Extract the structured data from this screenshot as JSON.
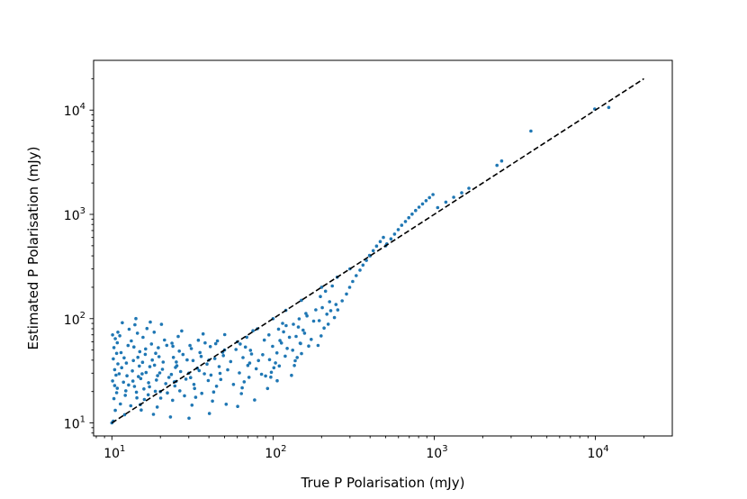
{
  "chart_data": {
    "type": "scatter",
    "title": "",
    "xlabel": "True P Polarisation (mJy)",
    "ylabel": "Estimated P Polarisation (mJy)",
    "xscale": "log",
    "yscale": "log",
    "xlim": [
      7.7,
      30000
    ],
    "ylim": [
      7.5,
      30000
    ],
    "xticks": [
      {
        "base": "10",
        "exp": "1",
        "value": 10
      },
      {
        "base": "10",
        "exp": "2",
        "value": 100
      },
      {
        "base": "10",
        "exp": "3",
        "value": 1000
      },
      {
        "base": "10",
        "exp": "4",
        "value": 10000
      }
    ],
    "yticks": [
      {
        "base": "10",
        "exp": "1",
        "value": 10
      },
      {
        "base": "10",
        "exp": "2",
        "value": 100
      },
      {
        "base": "10",
        "exp": "3",
        "value": 1000
      },
      {
        "base": "10",
        "exp": "4",
        "value": 10000
      }
    ],
    "grid": false,
    "legend": "none",
    "marker_color": "#1f77b4",
    "reference_line": {
      "label": "",
      "style": "dashed",
      "color": "#000000",
      "from": [
        10,
        10
      ],
      "to": [
        20000,
        20000
      ]
    },
    "points": [
      [
        10.2,
        10.4
      ],
      [
        10.5,
        13.2
      ],
      [
        10.3,
        17.1
      ],
      [
        10.8,
        21.5
      ],
      [
        10.1,
        25.3
      ],
      [
        10.6,
        28.7
      ],
      [
        10.4,
        32.4
      ],
      [
        10.9,
        36.8
      ],
      [
        10.2,
        41.2
      ],
      [
        10.7,
        46.5
      ],
      [
        10.3,
        52.8
      ],
      [
        10.8,
        58.6
      ],
      [
        10.5,
        64.3
      ],
      [
        10.1,
        69.8
      ],
      [
        10.9,
        74.1
      ],
      [
        10.4,
        22.8
      ],
      [
        10.7,
        19.5
      ],
      [
        11.3,
        15.2
      ],
      [
        11.8,
        24.6
      ],
      [
        11.5,
        33.9
      ],
      [
        12.1,
        18.4
      ],
      [
        12.4,
        28.3
      ],
      [
        11.9,
        42.1
      ],
      [
        12.6,
        55.3
      ],
      [
        11.2,
        68.5
      ],
      [
        12.8,
        79.2
      ],
      [
        11.6,
        91.4
      ],
      [
        12.3,
        37.5
      ],
      [
        11.4,
        47.2
      ],
      [
        12.7,
        23.1
      ],
      [
        11.1,
        29.6
      ],
      [
        12.2,
        20.3
      ],
      [
        13.1,
        14.6
      ],
      [
        13.8,
        22.4
      ],
      [
        13.4,
        31.5
      ],
      [
        14.2,
        19.7
      ],
      [
        14.6,
        27.8
      ],
      [
        13.6,
        39.6
      ],
      [
        14.9,
        48.3
      ],
      [
        13.2,
        61.2
      ],
      [
        14.4,
        72.5
      ],
      [
        13.9,
        87.3
      ],
      [
        14.1,
        100.1
      ],
      [
        14.8,
        35.1
      ],
      [
        13.5,
        25.2
      ],
      [
        14.3,
        17.4
      ],
      [
        13.7,
        53.5
      ],
      [
        14.5,
        42.6
      ],
      [
        15.2,
        13.3
      ],
      [
        15.8,
        21.2
      ],
      [
        16.3,
        30.4
      ],
      [
        15.5,
        38.2
      ],
      [
        16.8,
        18.6
      ],
      [
        15.1,
        26.6
      ],
      [
        17.2,
        34.6
      ],
      [
        16.1,
        45.5
      ],
      [
        17.6,
        57.1
      ],
      [
        15.6,
        66.2
      ],
      [
        16.5,
        80.4
      ],
      [
        17.3,
        92.7
      ],
      [
        16.9,
        24.3
      ],
      [
        15.9,
        16.8
      ],
      [
        17.8,
        40.1
      ],
      [
        16.2,
        51.2
      ],
      [
        15.4,
        29.5
      ],
      [
        17.1,
        22.2
      ],
      [
        18.1,
        12.1
      ],
      [
        18.6,
        20.1
      ],
      [
        19.2,
        28.4
      ],
      [
        18.4,
        35.8
      ],
      [
        19.6,
        43.2
      ],
      [
        20.1,
        17.3
      ],
      [
        18.9,
        25.8
      ],
      [
        20.6,
        32.7
      ],
      [
        19.4,
        52.6
      ],
      [
        21.2,
        62.4
      ],
      [
        18.3,
        74.2
      ],
      [
        20.3,
        88.1
      ],
      [
        21.6,
        23.8
      ],
      [
        19.8,
        30.2
      ],
      [
        22.1,
        19.4
      ],
      [
        20.8,
        38.3
      ],
      [
        18.7,
        46.6
      ],
      [
        21.9,
        55.5
      ],
      [
        19.1,
        14.2
      ],
      [
        22.6,
        27.3
      ],
      [
        23.1,
        11.4
      ],
      [
        23.8,
        16.5
      ],
      [
        24.6,
        22.6
      ],
      [
        23.4,
        29.2
      ],
      [
        25.3,
        35.3
      ],
      [
        24.1,
        42.5
      ],
      [
        26.2,
        48.8
      ],
      [
        23.6,
        58.2
      ],
      [
        25.8,
        67.4
      ],
      [
        27.1,
        76.3
      ],
      [
        24.4,
        24.8
      ],
      [
        26.7,
        31.1
      ],
      [
        28.2,
        18.2
      ],
      [
        25.1,
        38.4
      ],
      [
        27.6,
        45.3
      ],
      [
        23.9,
        54.4
      ],
      [
        28.8,
        26.3
      ],
      [
        26.4,
        20.3
      ],
      [
        24.8,
        34.1
      ],
      [
        29.3,
        40.2
      ],
      [
        30.1,
        11.1
      ],
      [
        31.4,
        14.8
      ],
      [
        32.6,
        21.4
      ],
      [
        30.8,
        27.2
      ],
      [
        33.9,
        33.5
      ],
      [
        31.9,
        39.6
      ],
      [
        35.2,
        47.3
      ],
      [
        30.5,
        55.2
      ],
      [
        34.4,
        62.1
      ],
      [
        36.8,
        71.4
      ],
      [
        32.3,
        23.4
      ],
      [
        37.5,
        29.6
      ],
      [
        33.1,
        17.6
      ],
      [
        38.9,
        36.7
      ],
      [
        35.8,
        43.4
      ],
      [
        31.1,
        51.6
      ],
      [
        39.6,
        25.5
      ],
      [
        36.1,
        19.2
      ],
      [
        34.8,
        31.8
      ],
      [
        37.9,
        58.5
      ],
      [
        40.3,
        12.3
      ],
      [
        42.1,
        16.2
      ],
      [
        44.6,
        22.5
      ],
      [
        41.2,
        28.8
      ],
      [
        46.3,
        34.7
      ],
      [
        43.5,
        41.4
      ],
      [
        48.7,
        47.6
      ],
      [
        40.8,
        53.9
      ],
      [
        45.2,
        61.2
      ],
      [
        50.1,
        70.3
      ],
      [
        47.4,
        26.1
      ],
      [
        52.3,
        32.3
      ],
      [
        42.8,
        19.8
      ],
      [
        54.6,
        38.8
      ],
      [
        49.2,
        44.2
      ],
      [
        44.1,
        57.5
      ],
      [
        56.8,
        23.4
      ],
      [
        51.2,
        15.1
      ],
      [
        46.9,
        29.9
      ],
      [
        58.9,
        50.6
      ],
      [
        60.3,
        14.4
      ],
      [
        63.6,
        19.1
      ],
      [
        66.2,
        24.8
      ],
      [
        61.8,
        30.2
      ],
      [
        69.8,
        35.6
      ],
      [
        65.1,
        42.3
      ],
      [
        72.4,
        49.7
      ],
      [
        62.5,
        57.1
      ],
      [
        68.7,
        66.3
      ],
      [
        75.1,
        76.5
      ],
      [
        70.9,
        27.4
      ],
      [
        78.6,
        33.1
      ],
      [
        64.3,
        21.7
      ],
      [
        81.2,
        39.6
      ],
      [
        73.5,
        45.8
      ],
      [
        67.4,
        53.4
      ],
      [
        84.8,
        29.3
      ],
      [
        76.8,
        16.6
      ],
      [
        71.6,
        37.5
      ],
      [
        88.3,
        62.2
      ],
      [
        86.2,
        45.1
      ],
      [
        89.9,
        28.2
      ],
      [
        92.5,
        21.4
      ],
      [
        96.8,
        27.5
      ],
      [
        101.2,
        33.8
      ],
      [
        95.1,
        40.4
      ],
      [
        105.7,
        46.9
      ],
      [
        99.3,
        54.3
      ],
      [
        110.4,
        61.6
      ],
      [
        94.2,
        69.8
      ],
      [
        108.2,
        79.4
      ],
      [
        114.6,
        90.2
      ],
      [
        103.5,
        37.6
      ],
      [
        118.9,
        43.7
      ],
      [
        97.6,
        30.6
      ],
      [
        122.3,
        51.8
      ],
      [
        112.7,
        58.4
      ],
      [
        106.1,
        25.4
      ],
      [
        126.4,
        66.3
      ],
      [
        116.2,
        74.8
      ],
      [
        109.3,
        35.2
      ],
      [
        120.5,
        85.7
      ],
      [
        130.1,
        28.6
      ],
      [
        135.6,
        35.5
      ],
      [
        141.2,
        42.4
      ],
      [
        132.4,
        49.8
      ],
      [
        147.3,
        58.2
      ],
      [
        138.9,
        67.5
      ],
      [
        153.6,
        77.4
      ],
      [
        133.8,
        88.3
      ],
      [
        145.1,
        99.6
      ],
      [
        159.8,
        112.1
      ],
      [
        150.2,
        46.2
      ],
      [
        166.3,
        54.6
      ],
      [
        137.2,
        39.5
      ],
      [
        172.4,
        63.2
      ],
      [
        156.9,
        72.6
      ],
      [
        143.6,
        83.1
      ],
      [
        178.6,
        94.8
      ],
      [
        162.4,
        106.2
      ],
      [
        148.2,
        57.7
      ],
      [
        184.1,
        121.4
      ],
      [
        190.2,
        55.4
      ],
      [
        198.6,
        68.3
      ],
      [
        207.3,
        81.2
      ],
      [
        193.4,
        95.6
      ],
      [
        215.8,
        110.3
      ],
      [
        202.1,
        127.5
      ],
      [
        224.3,
        145.2
      ],
      [
        196.7,
        163.1
      ],
      [
        211.6,
        183.3
      ],
      [
        232.9,
        205.6
      ],
      [
        219.8,
        88.6
      ],
      [
        240.2,
        102.4
      ],
      [
        228.1,
        119.3
      ],
      [
        245.6,
        136.5
      ],
      [
        252.1,
        121.3
      ],
      [
        268.6,
        148.2
      ],
      [
        285.4,
        172.4
      ],
      [
        298.7,
        199.5
      ],
      [
        312.2,
        227.3
      ],
      [
        328.1,
        258.8
      ],
      [
        346.3,
        292.1
      ],
      [
        361.5,
        326.6
      ],
      [
        379.2,
        362.2
      ],
      [
        396.8,
        403.5
      ],
      [
        418.3,
        448.6
      ],
      [
        438.6,
        496.2
      ],
      [
        462.4,
        548.1
      ],
      [
        483.9,
        601.6
      ],
      [
        508.2,
        520.4
      ],
      [
        538.6,
        582.2
      ],
      [
        567.1,
        646.3
      ],
      [
        598.4,
        714.6
      ],
      [
        628.3,
        785.7
      ],
      [
        662.5,
        855.2
      ],
      [
        695.1,
        928.6
      ],
      [
        728.6,
        1006.2
      ],
      [
        766.3,
        1089.4
      ],
      [
        805.2,
        1172.1
      ],
      [
        846.2,
        1259.8
      ],
      [
        889.4,
        1352.4
      ],
      [
        934.1,
        1448.2
      ],
      [
        982.3,
        1549.6
      ],
      [
        1050,
        1160
      ],
      [
        1180,
        1310
      ],
      [
        1320,
        1460
      ],
      [
        1480,
        1610
      ],
      [
        1640,
        1780
      ],
      [
        2450,
        2950
      ],
      [
        2620,
        3250
      ],
      [
        3980,
        6300
      ],
      [
        9900,
        10250
      ],
      [
        12100,
        10600
      ],
      [
        10,
        10
      ],
      [
        12,
        12
      ],
      [
        15,
        15
      ],
      [
        20,
        20
      ],
      [
        25,
        25
      ],
      [
        30,
        30
      ],
      [
        40,
        40
      ],
      [
        50,
        50
      ],
      [
        60,
        60
      ],
      [
        80,
        80
      ],
      [
        100,
        100
      ],
      [
        120,
        120
      ],
      [
        150,
        150
      ],
      [
        200,
        200
      ],
      [
        250,
        250
      ],
      [
        300,
        300
      ],
      [
        400,
        400
      ],
      [
        500,
        500
      ]
    ]
  }
}
